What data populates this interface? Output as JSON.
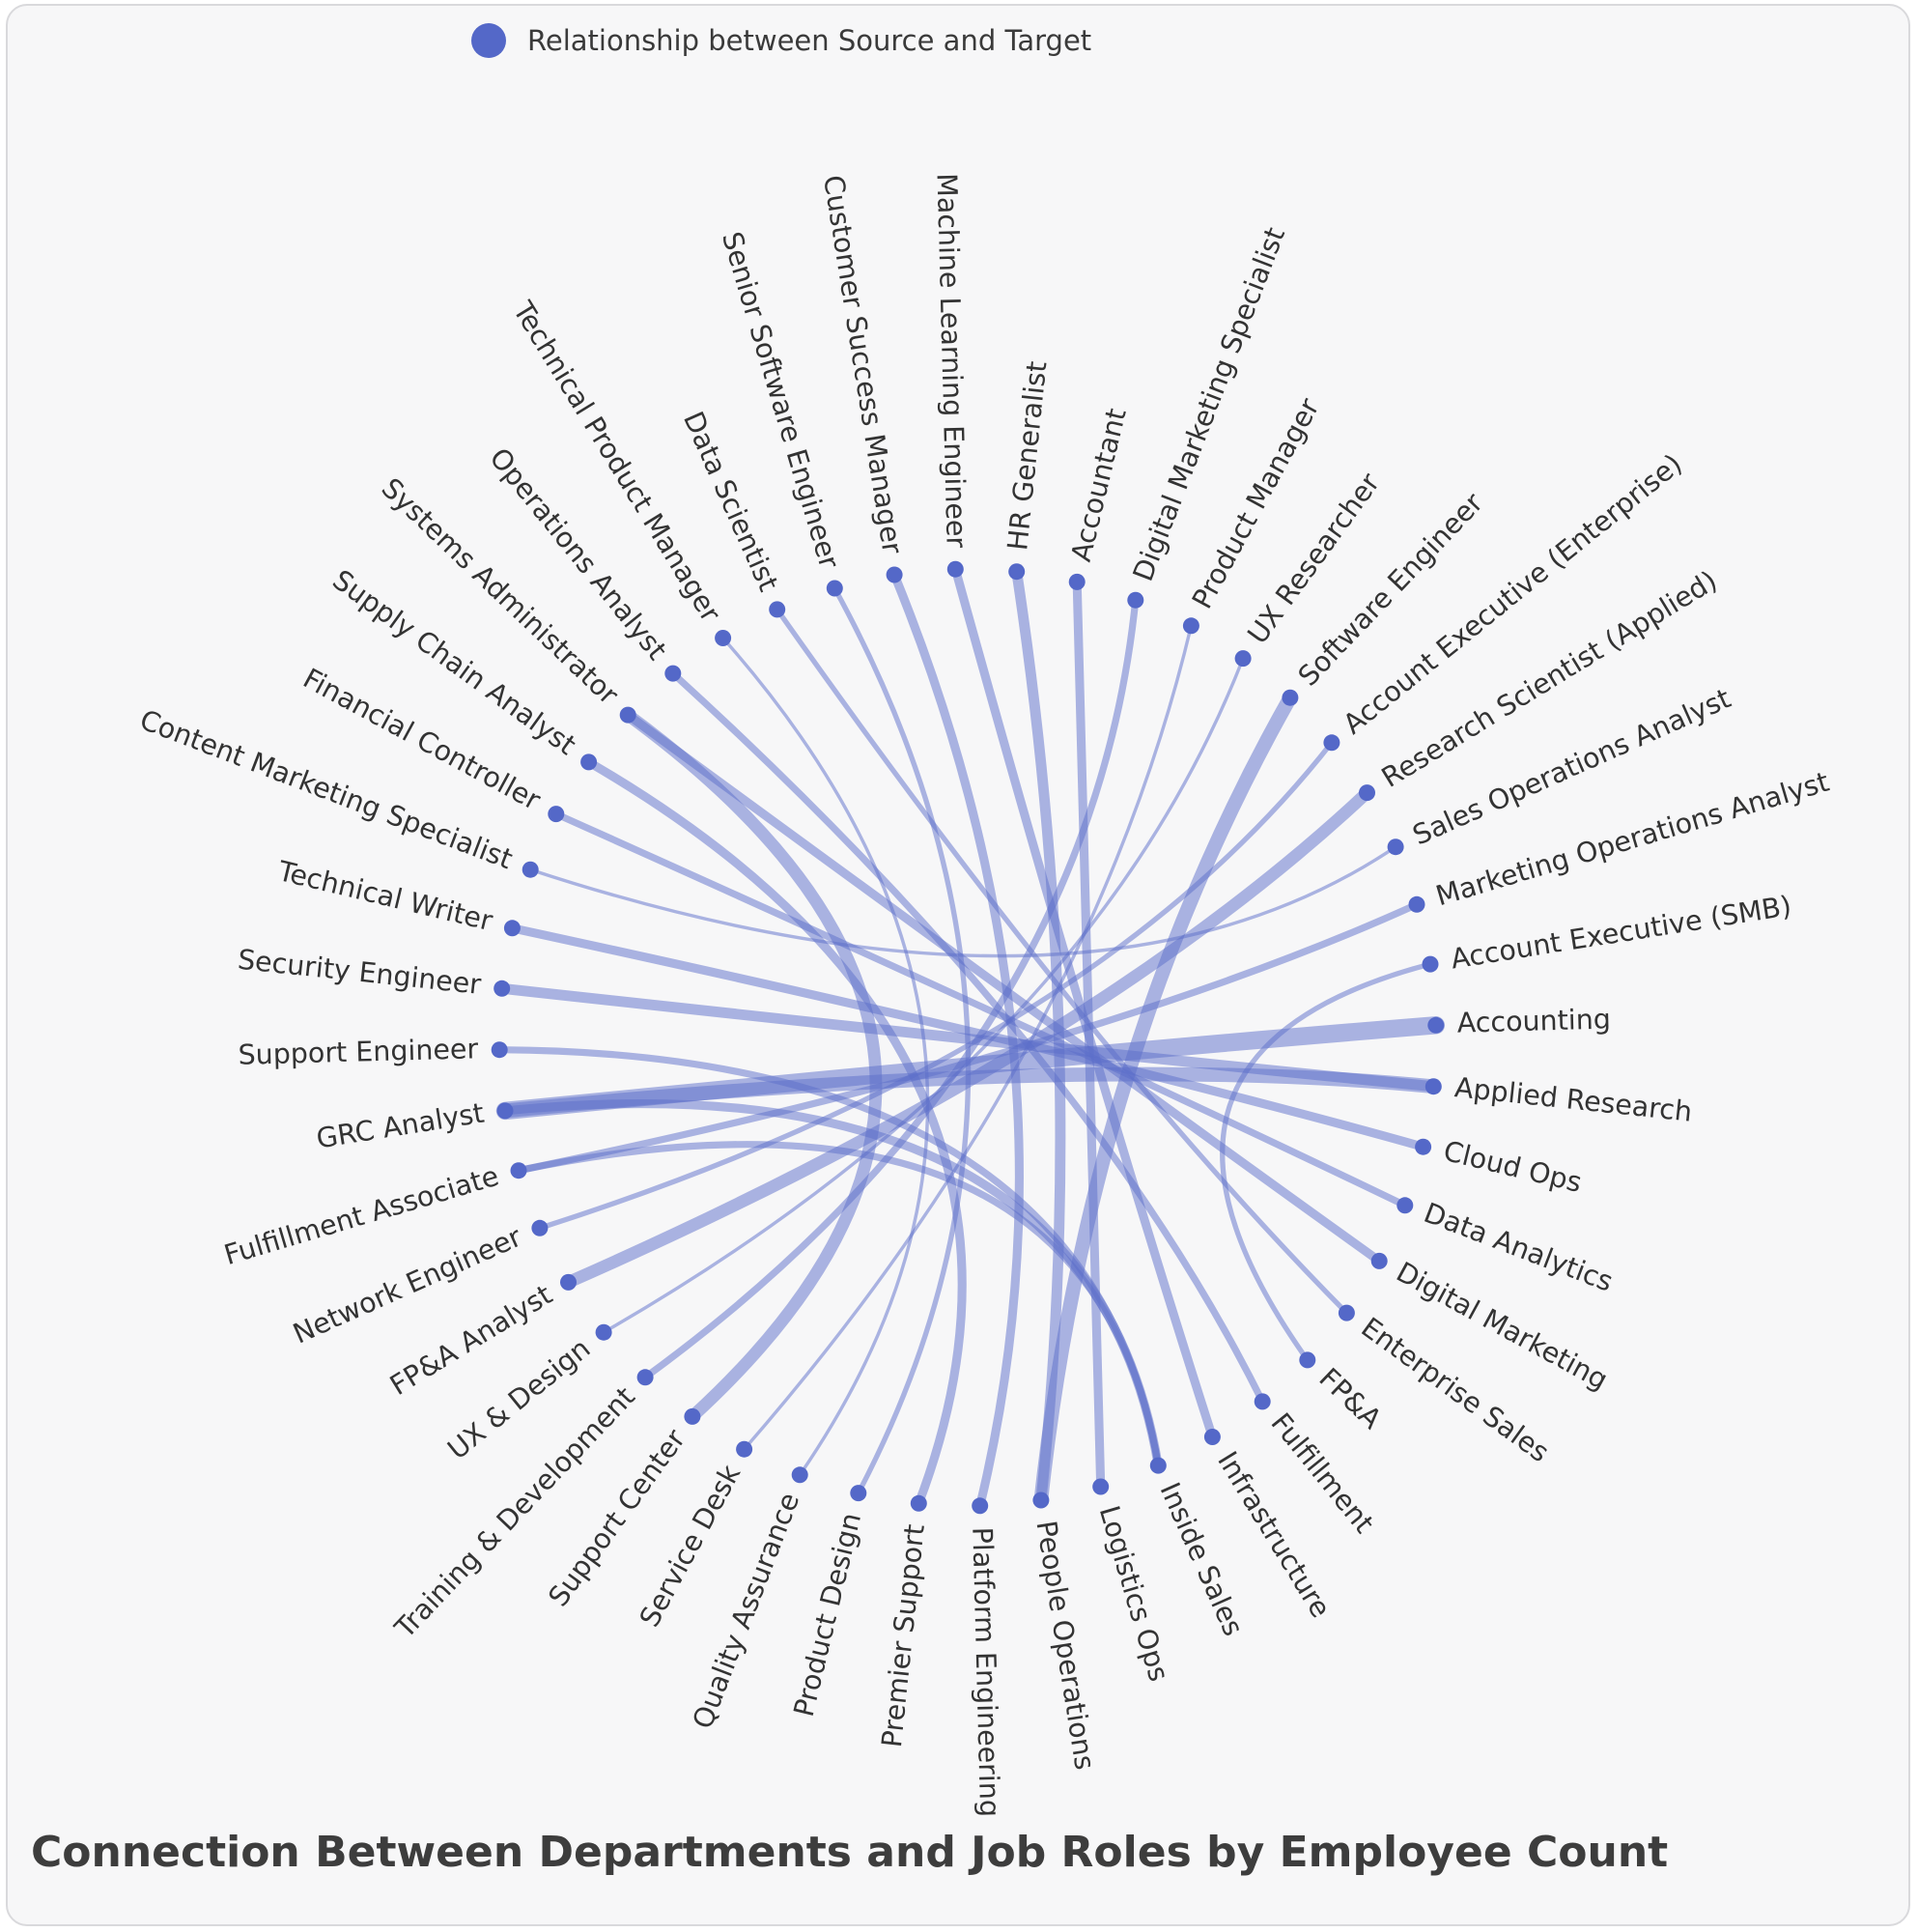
{
  "chart_data": {
    "type": "chord",
    "title": "Connection Between Departments and Job Roles by Employee Count",
    "legend": {
      "label": "Relationship between Source and Target",
      "position": "top-left",
      "color": "#5b6ec9"
    },
    "colors": {
      "link": "#5b6ec9",
      "node": "#5468c8",
      "text": "#333333",
      "background": "#f7f7f8"
    },
    "nodes": [
      "HR Generalist",
      "Accountant",
      "Digital Marketing Specialist",
      "Product Manager",
      "UX Researcher",
      "Software Engineer",
      "Account Executive (Enterprise)",
      "Research Scientist (Applied)",
      "Sales Operations Analyst",
      "Marketing Operations Analyst",
      "Account Executive (SMB)",
      "Accounting",
      "Applied Research",
      "Cloud Ops",
      "Data Analytics",
      "Digital Marketing",
      "Enterprise Sales",
      "FP&A",
      "Fulfillment",
      "Infrastructure",
      "Inside Sales",
      "Logistics Ops",
      "People Operations",
      "Platform Engineering",
      "Premier Support",
      "Product Design",
      "Quality Assurance",
      "Service Desk",
      "Support Center",
      "Training & Development",
      "UX & Design",
      "FP&A Analyst",
      "Network Engineer",
      "Fulfillment Associate",
      "GRC Analyst",
      "Support Engineer",
      "Security Engineer",
      "Technical Writer",
      "Content Marketing Specialist",
      "Financial Controller",
      "Supply Chain Analyst",
      "Systems Administrator",
      "Operations Analyst",
      "Technical Product Manager",
      "Data Scientist",
      "Senior Software Engineer",
      "Customer Success Manager",
      "Machine Learning Engineer"
    ],
    "links": [
      {
        "source": "GRC Analyst",
        "target": "Accounting",
        "value": 9
      },
      {
        "source": "GRC Analyst",
        "target": "Applied Research",
        "value": 7
      },
      {
        "source": "GRC Analyst",
        "target": "Inside Sales",
        "value": 4
      },
      {
        "source": "Software Engineer",
        "target": "People Operations",
        "value": 7
      },
      {
        "source": "Research Scientist (Applied)",
        "target": "FP&A Analyst",
        "value": 6
      },
      {
        "source": "Customer Success Manager",
        "target": "Platform Engineering",
        "value": 4
      },
      {
        "source": "Systems Administrator",
        "target": "Support Center",
        "value": 6
      },
      {
        "source": "Systems Administrator",
        "target": "Digital Marketing",
        "value": 4
      },
      {
        "source": "HR Generalist",
        "target": "People Operations",
        "value": 5
      },
      {
        "source": "Accountant",
        "target": "Logistics Ops",
        "value": 4
      },
      {
        "source": "Security Engineer",
        "target": "Applied Research",
        "value": 5
      },
      {
        "source": "Marketing Operations Analyst",
        "target": "Fulfillment Associate",
        "value": 3
      },
      {
        "source": "Technical Writer",
        "target": "Cloud Ops",
        "value": 4
      },
      {
        "source": "Operations Analyst",
        "target": "Fulfillment",
        "value": 3
      },
      {
        "source": "Machine Learning Engineer",
        "target": "Infrastructure",
        "value": 4
      },
      {
        "source": "Supply Chain Analyst",
        "target": "Premier Support",
        "value": 4
      },
      {
        "source": "Financial Controller",
        "target": "Data Analytics",
        "value": 3
      },
      {
        "source": "Digital Marketing Specialist",
        "target": "Training & Development",
        "value": 3
      },
      {
        "source": "Support Engineer",
        "target": "Inside Sales",
        "value": 3
      },
      {
        "source": "Data Scientist",
        "target": "Enterprise Sales",
        "value": 2
      },
      {
        "source": "Senior Software Engineer",
        "target": "Product Design",
        "value": 2
      },
      {
        "source": "Technical Product Manager",
        "target": "Quality Assurance",
        "value": 1
      },
      {
        "source": "Product Manager",
        "target": "Service Desk",
        "value": 1
      },
      {
        "source": "UX Researcher",
        "target": "UX & Design",
        "value": 1
      },
      {
        "source": "Account Executive (Enterprise)",
        "target": "Network Engineer",
        "value": 2
      },
      {
        "source": "Sales Operations Analyst",
        "target": "Content Marketing Specialist",
        "value": 1
      },
      {
        "source": "Account Executive (SMB)",
        "target": "FP&A",
        "value": 2
      },
      {
        "source": "Fulfillment Associate",
        "target": "Inside Sales",
        "value": 3
      }
    ]
  }
}
